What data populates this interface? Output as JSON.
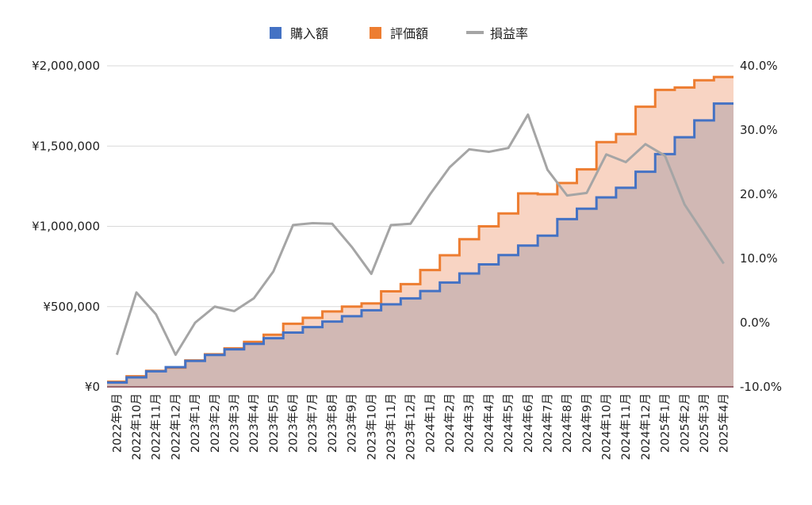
{
  "chart_data": {
    "type": "area",
    "categories": [
      "2022年9月",
      "2022年10月",
      "2022年11月",
      "2022年12月",
      "2023年1月",
      "2023年2月",
      "2023年3月",
      "2023年4月",
      "2023年5月",
      "2023年6月",
      "2023年7月",
      "2023年8月",
      "2023年9月",
      "2023年10月",
      "2023年11月",
      "2023年12月",
      "2024年1月",
      "2024年2月",
      "2024年3月",
      "2024年4月",
      "2024年5月",
      "2024年6月",
      "2024年7月",
      "2024年8月",
      "2024年9月",
      "2024年10月",
      "2024年11月",
      "2024年12月",
      "2025年1月",
      "2025年2月",
      "2025年3月",
      "2025年4月"
    ],
    "series": [
      {
        "name": "購入額",
        "axis": "left",
        "style": "step-area",
        "color": "#4472C4",
        "fill": "#d1b8b4",
        "values": [
          27000,
          59000,
          97000,
          123000,
          162000,
          199000,
          234000,
          268000,
          303000,
          338000,
          372000,
          407000,
          440000,
          477000,
          514000,
          551000,
          597000,
          650000,
          706000,
          763000,
          821000,
          880000,
          942000,
          1045000,
          1110000,
          1180000,
          1240000,
          1340000,
          1450000,
          1555000,
          1660000,
          1765000
        ]
      },
      {
        "name": "評価額",
        "axis": "left",
        "style": "step-area",
        "color": "#ED7D31",
        "fill": "#f8d4c3",
        "values": [
          32000,
          66000,
          100000,
          120000,
          165000,
          203000,
          240000,
          280000,
          325000,
          393000,
          430000,
          470000,
          500000,
          520000,
          595000,
          640000,
          728000,
          820000,
          920000,
          1000000,
          1080000,
          1205000,
          1200000,
          1270000,
          1355000,
          1525000,
          1575000,
          1745000,
          1850000,
          1865000,
          1910000,
          1930000
        ]
      },
      {
        "name": "損益率",
        "axis": "right",
        "style": "line",
        "color": "#A5A5A5",
        "values": [
          -5.0,
          4.7,
          1.3,
          -5.0,
          0.0,
          2.5,
          1.8,
          3.8,
          8.0,
          15.2,
          15.5,
          15.4,
          11.8,
          7.6,
          15.2,
          15.4,
          20.0,
          24.2,
          27.0,
          26.6,
          27.2,
          32.4,
          23.8,
          19.8,
          20.2,
          26.2,
          25.0,
          27.8,
          26.0,
          18.4,
          13.8,
          9.2
        ]
      }
    ],
    "yaxis_left": {
      "min": 0,
      "max": 2000000,
      "ticks": [
        "¥0",
        "¥500,000",
        "¥1,000,000",
        "¥1,500,000",
        "¥2,000,000"
      ]
    },
    "yaxis_right": {
      "min": -10,
      "max": 40,
      "ticks": [
        "-10.0%",
        "0.0%",
        "10.0%",
        "20.0%",
        "30.0%",
        "40.0%"
      ]
    },
    "grid": true,
    "legend_position": "top-center",
    "legend": [
      "購入額",
      "評価額",
      "損益率"
    ]
  }
}
